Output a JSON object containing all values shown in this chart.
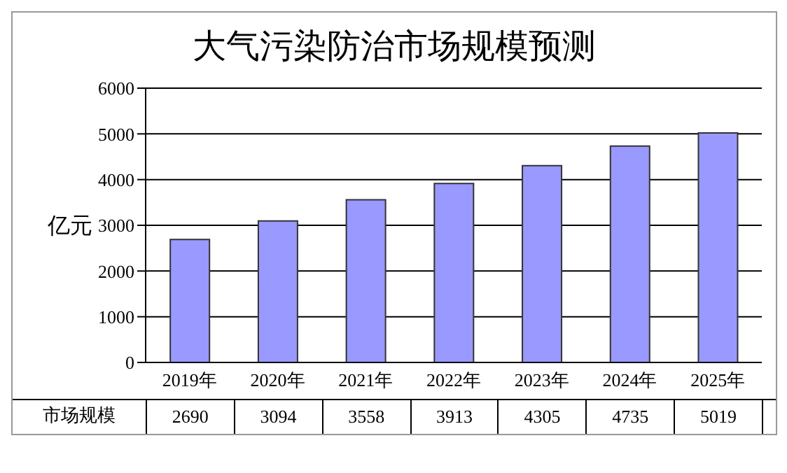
{
  "chart_data": {
    "type": "bar",
    "title": "大气污染防治市场规模预测",
    "ylabel": "亿元",
    "categories": [
      "2019年",
      "2020年",
      "2021年",
      "2022年",
      "2023年",
      "2024年",
      "2025年"
    ],
    "series": [
      {
        "name": "市场规模",
        "color": "#9999ff",
        "values": [
          2690,
          3094,
          3558,
          3913,
          4305,
          4735,
          5019
        ]
      }
    ],
    "ylim": [
      0,
      6000
    ],
    "yticks": [
      0,
      1000,
      2000,
      3000,
      4000,
      5000,
      6000
    ],
    "grid": "y",
    "data_labels": true
  }
}
